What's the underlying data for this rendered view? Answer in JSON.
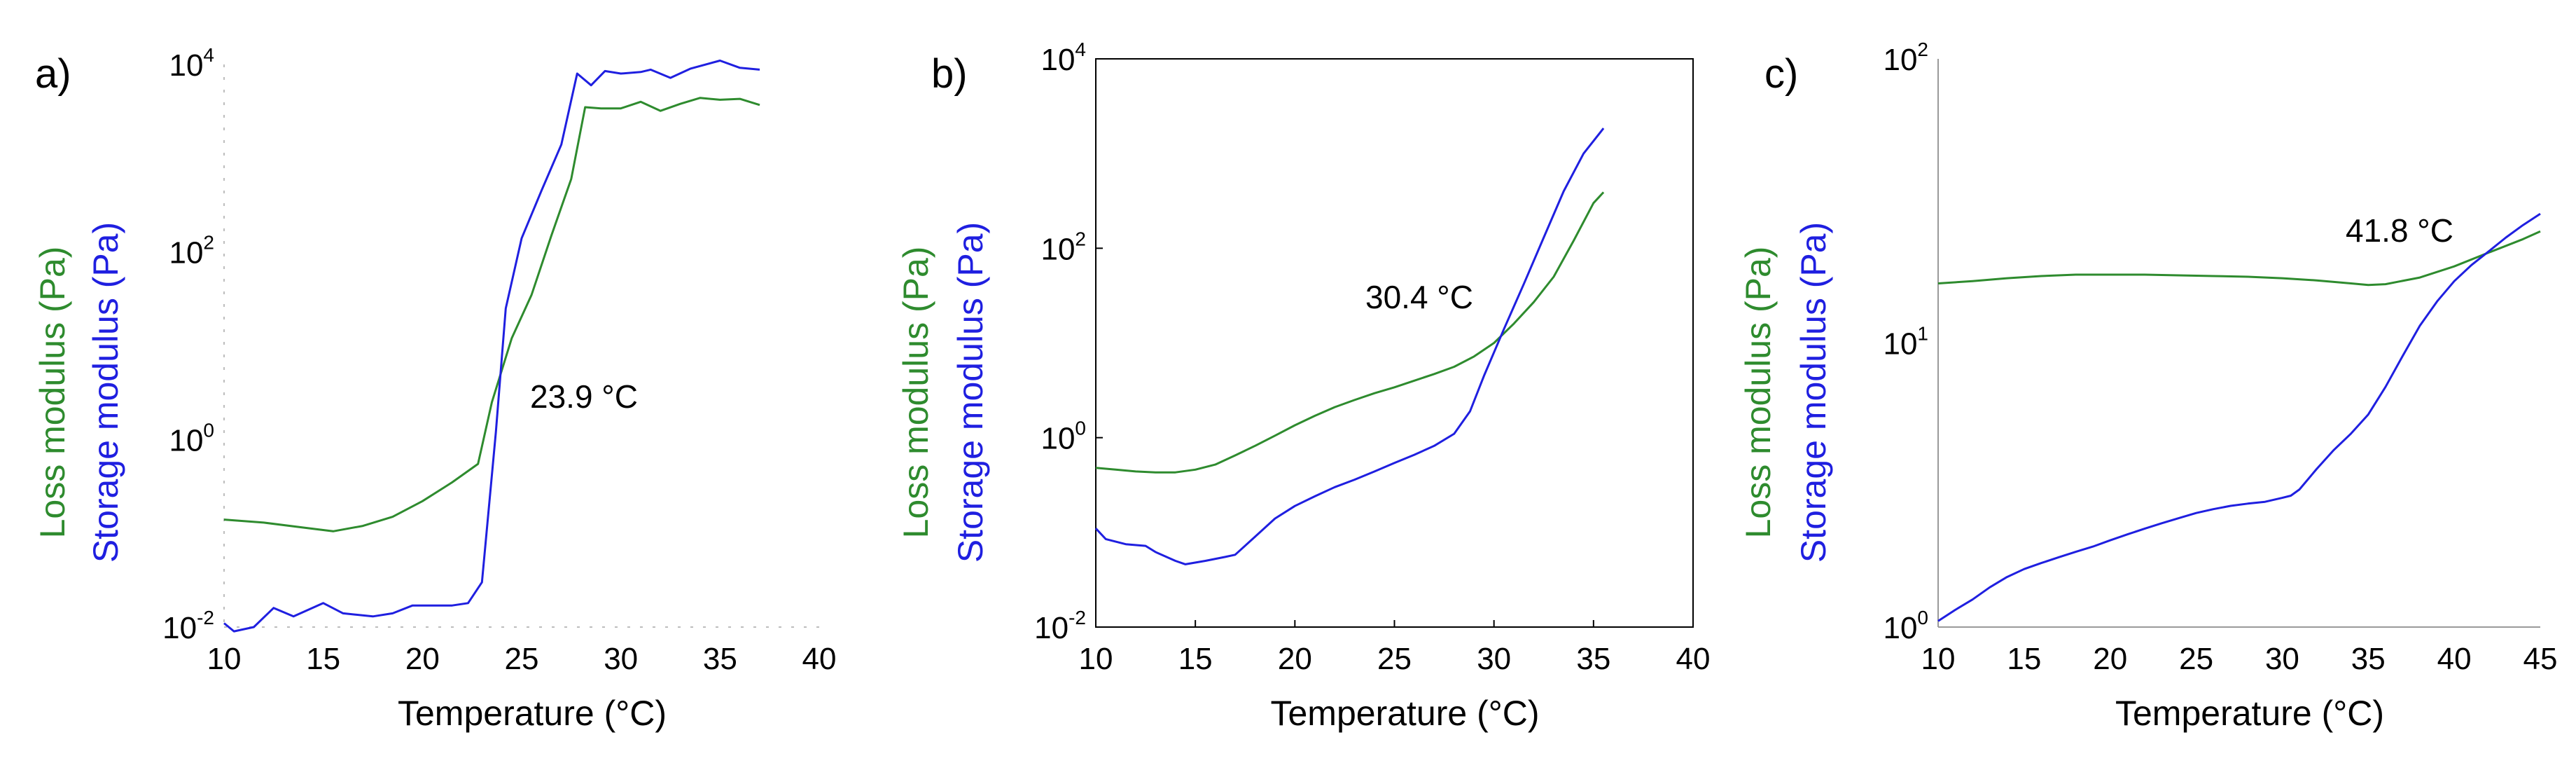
{
  "chart_data": [
    {
      "type": "line",
      "panel_label": "a)",
      "xlabel": "Temperature (°C)",
      "ylabel_loss": "Loss modulus  (Pa)",
      "ylabel_storage": "Storage modulus (Pa)",
      "yscale": "log",
      "xlim": [
        10,
        40
      ],
      "ylim": [
        0.01,
        10000
      ],
      "xticks": [
        "10",
        "15",
        "20",
        "25",
        "30",
        "35",
        "40"
      ],
      "ytick_values": [
        0.01,
        1,
        100,
        10000
      ],
      "ytick_labels": [
        [
          "10",
          "-2"
        ],
        [
          "10",
          "0"
        ],
        [
          "10",
          "2"
        ],
        [
          "10",
          "4"
        ]
      ],
      "crossover_label": "23.9 °C",
      "crossover_point": [
        23.9,
        3.5
      ],
      "series": [
        {
          "name": "Loss modulus",
          "color": "#2e8b2e",
          "x": [
            10,
            12,
            14,
            15.5,
            17,
            18.5,
            20,
            21.5,
            22.8,
            23.5,
            24.5,
            25.5,
            26.5,
            27.5,
            28.2,
            29,
            30,
            31,
            32,
            33,
            34,
            35,
            36,
            37
          ],
          "y": [
            0.14,
            0.13,
            0.115,
            0.105,
            0.12,
            0.15,
            0.22,
            0.35,
            0.55,
            2.5,
            12,
            35,
            150,
            600,
            3500,
            3400,
            3400,
            4000,
            3200,
            3800,
            4400,
            4200,
            4300,
            3700
          ]
        },
        {
          "name": "Storage modulus",
          "color": "#1f1fe0",
          "x": [
            10,
            10.5,
            11.5,
            12.5,
            13.5,
            15,
            16,
            17.5,
            18.5,
            19.5,
            20.5,
            21.5,
            22.3,
            23,
            23.7,
            24.2,
            25,
            26,
            27,
            27.8,
            28.5,
            29.2,
            30,
            31,
            31.5,
            32.5,
            33.5,
            35,
            36,
            37
          ],
          "y": [
            0.011,
            0.009,
            0.01,
            0.016,
            0.013,
            0.018,
            0.014,
            0.013,
            0.014,
            0.017,
            0.017,
            0.017,
            0.018,
            0.03,
            1.2,
            25,
            140,
            450,
            1400,
            8000,
            6000,
            8500,
            8000,
            8300,
            8800,
            7200,
            9000,
            11000,
            9200,
            8800
          ]
        }
      ]
    },
    {
      "type": "line",
      "panel_label": "b)",
      "xlabel": "Temperature (°C)",
      "ylabel_loss": "Loss modulus  (Pa)",
      "ylabel_storage": "Storage modulus (Pa)",
      "yscale": "log",
      "xlim": [
        10,
        40
      ],
      "ylim": [
        0.01,
        10000
      ],
      "xticks": [
        "10",
        "15",
        "20",
        "25",
        "30",
        "35",
        "40"
      ],
      "ytick_values": [
        0.01,
        1,
        100,
        10000
      ],
      "ytick_labels": [
        [
          "10",
          "-2"
        ],
        [
          "10",
          "0"
        ],
        [
          "10",
          "2"
        ],
        [
          "10",
          "4"
        ]
      ],
      "crossover_label": "30.4 °C",
      "crossover_point": [
        30.4,
        12
      ],
      "series": [
        {
          "name": "Loss modulus",
          "color": "#2e8b2e",
          "x": [
            10,
            11,
            12,
            13,
            14,
            15,
            16,
            17,
            18,
            19,
            20,
            21,
            22,
            23,
            24,
            25,
            26,
            27,
            28,
            29,
            30,
            31,
            32,
            33,
            34,
            35,
            35.5
          ],
          "y": [
            0.48,
            0.46,
            0.44,
            0.43,
            0.43,
            0.46,
            0.52,
            0.65,
            0.82,
            1.05,
            1.35,
            1.7,
            2.1,
            2.5,
            2.95,
            3.4,
            4.0,
            4.7,
            5.6,
            7.2,
            10,
            16,
            27,
            50,
            120,
            300,
            390
          ]
        },
        {
          "name": "Storage modulus",
          "color": "#1f1fe0",
          "x": [
            10,
            10.5,
            11.5,
            12.5,
            13,
            14,
            14.5,
            15.5,
            16.5,
            17,
            18,
            19,
            20,
            21,
            22,
            23,
            24,
            25,
            26,
            27,
            28,
            28.8,
            29.5,
            30.5,
            31.5,
            32.5,
            33.5,
            34.5,
            35.5
          ],
          "y": [
            0.11,
            0.085,
            0.075,
            0.072,
            0.062,
            0.05,
            0.046,
            0.05,
            0.055,
            0.058,
            0.09,
            0.14,
            0.19,
            0.24,
            0.3,
            0.36,
            0.44,
            0.54,
            0.66,
            0.82,
            1.1,
            1.9,
            4.5,
            14,
            42,
            130,
            400,
            1000,
            1850
          ]
        }
      ]
    },
    {
      "type": "line",
      "panel_label": "c)",
      "xlabel": "Temperature (°C)",
      "ylabel_loss": "Loss modulus  (Pa)",
      "ylabel_storage": "Storage modulus (Pa)",
      "yscale": "log",
      "xlim": [
        10,
        45
      ],
      "ylim": [
        1,
        100
      ],
      "xticks": [
        "10",
        "15",
        "20",
        "25",
        "30",
        "35",
        "40",
        "45"
      ],
      "ytick_values": [
        1,
        10,
        100
      ],
      "ytick_labels": [
        [
          "10",
          "0"
        ],
        [
          "10",
          "1"
        ],
        [
          "10",
          "2"
        ]
      ],
      "crossover_label": "41.8 °C",
      "crossover_point": [
        41.8,
        20.8
      ],
      "series": [
        {
          "name": "Loss modulus",
          "color": "#2e8b2e",
          "x": [
            10,
            12,
            14,
            16,
            18,
            20,
            22,
            24,
            26,
            28,
            30,
            32,
            34,
            35,
            36,
            38,
            40,
            42,
            44,
            45
          ],
          "y": [
            16.2,
            16.5,
            16.9,
            17.2,
            17.4,
            17.4,
            17.4,
            17.3,
            17.2,
            17.1,
            16.9,
            16.6,
            16.2,
            16.0,
            16.1,
            17.0,
            18.6,
            20.8,
            23.2,
            24.7
          ]
        },
        {
          "name": "Storage modulus",
          "color": "#1f1fe0",
          "x": [
            10,
            11,
            12,
            13,
            14,
            15,
            16,
            17,
            18,
            19,
            20,
            21,
            22,
            23,
            24,
            25,
            26,
            27,
            28,
            29,
            30,
            30.5,
            31,
            32,
            33,
            34,
            35,
            36,
            37,
            38,
            39,
            40,
            41,
            42,
            43,
            44,
            45
          ],
          "y": [
            1.05,
            1.15,
            1.25,
            1.38,
            1.5,
            1.6,
            1.68,
            1.76,
            1.84,
            1.92,
            2.02,
            2.12,
            2.22,
            2.32,
            2.42,
            2.52,
            2.6,
            2.67,
            2.72,
            2.76,
            2.85,
            2.9,
            3.05,
            3.6,
            4.2,
            4.8,
            5.6,
            7.0,
            9.0,
            11.5,
            14.0,
            16.5,
            18.8,
            21.0,
            23.5,
            26.0,
            28.5
          ]
        }
      ]
    }
  ]
}
